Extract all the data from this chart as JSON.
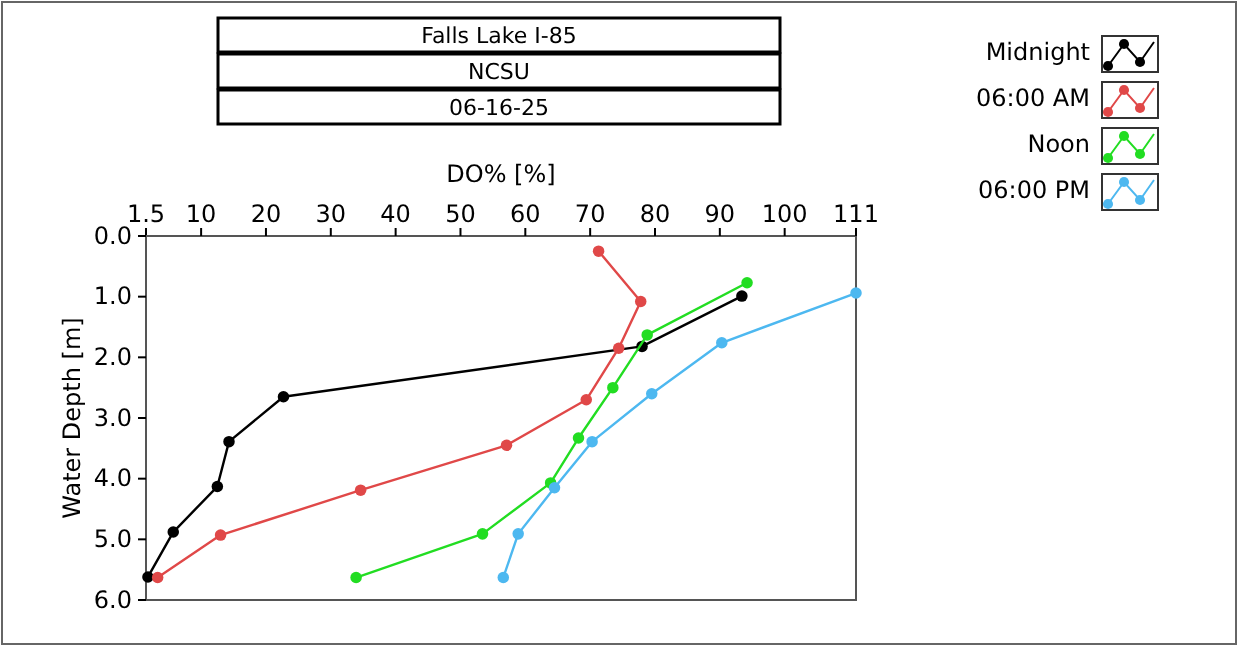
{
  "chart_data": {
    "type": "line",
    "title": "Falls Lake I-85",
    "subtitle": "NCSU",
    "annotations": [
      "06-16-25"
    ],
    "xlabel": "DO% [%]",
    "ylabel": "Water Depth [m]",
    "xlim": [
      1.5,
      111
    ],
    "xticks": [
      1.5,
      10,
      20,
      30,
      40,
      50,
      60,
      70,
      80,
      90,
      100,
      111
    ],
    "ylim": [
      6.0,
      0.0
    ],
    "yticks": [
      {
        "value": 0,
        "label": "0.0"
      },
      {
        "value": 1,
        "label": "1.0"
      },
      {
        "value": 2,
        "label": "2.0"
      },
      {
        "value": 3,
        "label": "3.0"
      },
      {
        "value": 4,
        "label": "4.0"
      },
      {
        "value": 5,
        "label": "5.0"
      },
      {
        "value": 6,
        "label": "6.0"
      }
    ],
    "grid": false,
    "legend": "top right",
    "marker": "circle",
    "line_style": "solid",
    "series": [
      {
        "name": "Midnight",
        "color": "#000000",
        "x": [
          93.4,
          78.0,
          22.7,
          14.3,
          12.5,
          5.7,
          1.8
        ],
        "values": [
          0.99,
          1.82,
          2.65,
          3.39,
          4.13,
          4.88,
          5.62
        ]
      },
      {
        "name": "06:00 AM",
        "color": "#e04848",
        "x": [
          71.3,
          77.8,
          74.4,
          69.4,
          57.1,
          34.6,
          13.0,
          3.3
        ],
        "values": [
          0.25,
          1.08,
          1.85,
          2.7,
          3.45,
          4.19,
          4.93,
          5.63
        ]
      },
      {
        "name": "Noon",
        "color": "#22dd22",
        "x": [
          94.2,
          78.8,
          73.5,
          68.2,
          63.9,
          53.4,
          33.9
        ],
        "values": [
          0.77,
          1.63,
          2.5,
          3.33,
          4.07,
          4.91,
          5.63
        ]
      },
      {
        "name": "06:00 PM",
        "color": "#4db8f0",
        "x": [
          111,
          90.3,
          79.5,
          70.3,
          64.5,
          58.9,
          56.6
        ],
        "values": [
          0.94,
          1.76,
          2.6,
          3.39,
          4.15,
          4.91,
          5.63
        ]
      }
    ]
  }
}
